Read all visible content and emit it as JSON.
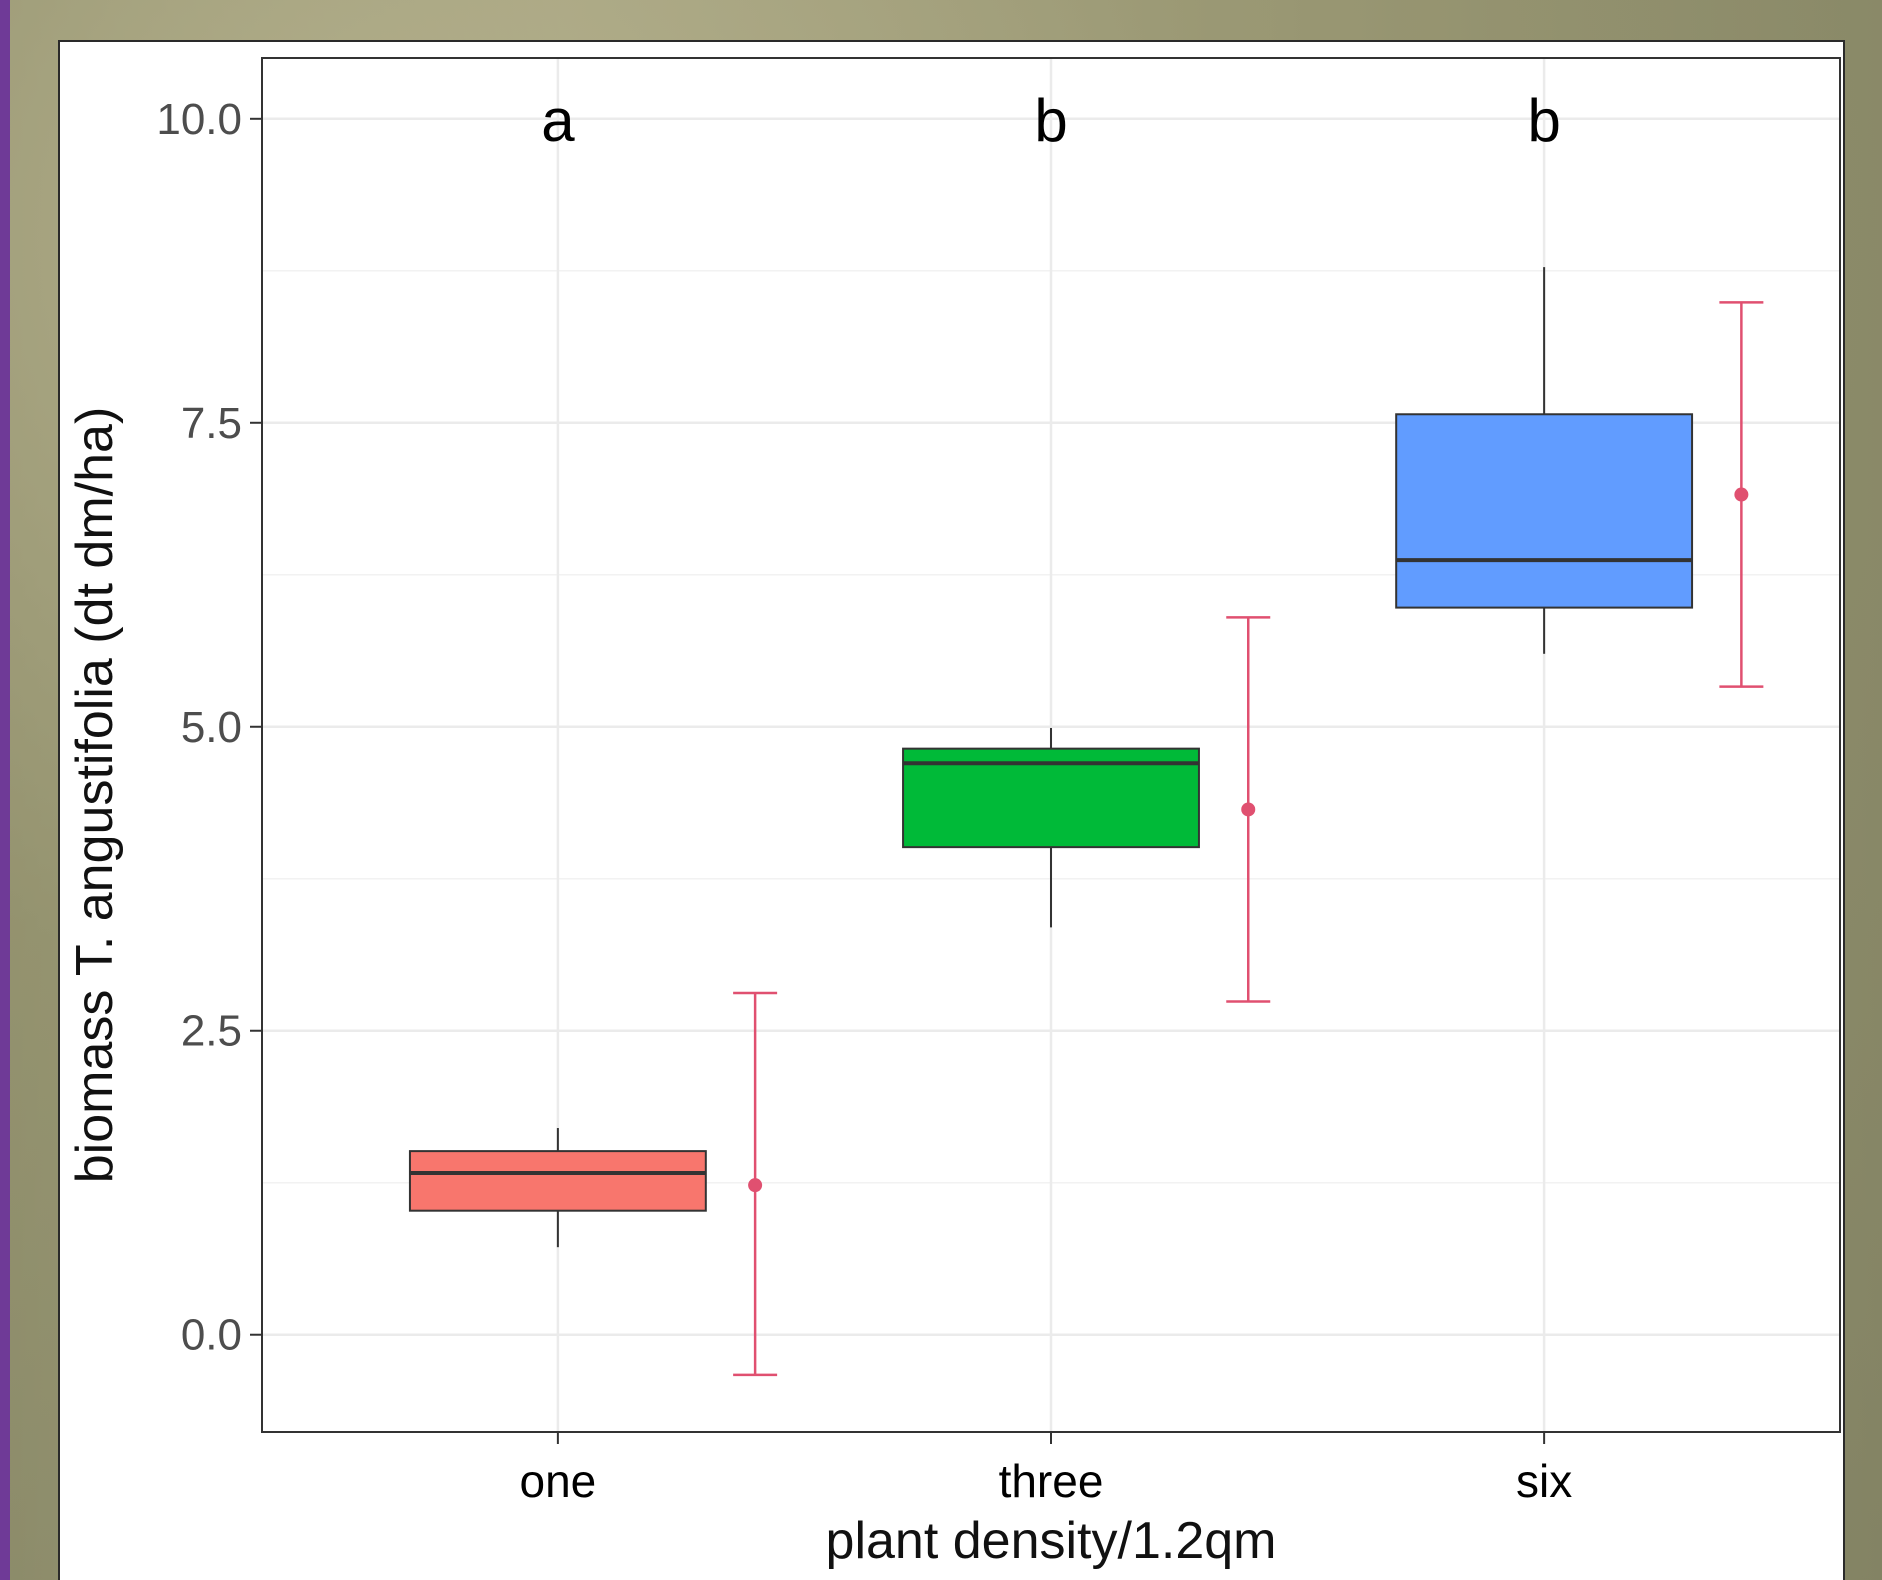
{
  "chart_data": {
    "type": "boxplot",
    "title": "",
    "xlabel": "plant density/1.2qm",
    "ylabel": "biomass T. angustifolia (dt dm/ha)",
    "ylim": [
      -0.8,
      10.5
    ],
    "yticks": [
      "0.0",
      "2.5",
      "5.0",
      "7.5",
      "10.0"
    ],
    "ytick_values": [
      0,
      2.5,
      5,
      7.5,
      10
    ],
    "grid": true,
    "categories": [
      "one",
      "three",
      "six"
    ],
    "group_letters": [
      "a",
      "b",
      "b"
    ],
    "boxes": [
      {
        "category": "one",
        "min": 0.72,
        "q1": 1.02,
        "median": 1.33,
        "q3": 1.51,
        "max": 1.7,
        "color": "#f8766d"
      },
      {
        "category": "three",
        "min": 3.35,
        "q1": 4.01,
        "median": 4.7,
        "q3": 4.82,
        "max": 4.99,
        "color": "#00ba38"
      },
      {
        "category": "six",
        "min": 5.6,
        "q1": 5.98,
        "median": 6.37,
        "q3": 7.57,
        "max": 8.78,
        "color": "#619cff"
      }
    ],
    "mean_errorbars": [
      {
        "category": "one",
        "mean": 1.23,
        "lower": -0.33,
        "upper": 2.81
      },
      {
        "category": "three",
        "mean": 4.32,
        "lower": 2.74,
        "upper": 5.9
      },
      {
        "category": "six",
        "mean": 6.91,
        "lower": 5.33,
        "upper": 8.49
      }
    ],
    "errorbar_color": "#e05070"
  }
}
